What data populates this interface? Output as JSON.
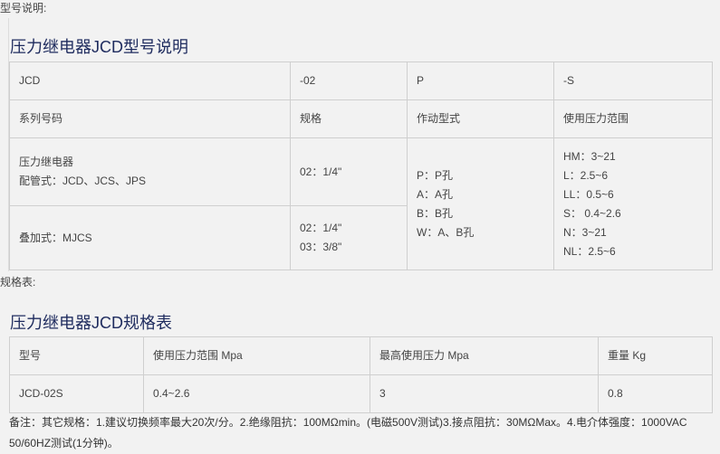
{
  "section1_label": "型号说明:",
  "table1": {
    "title": "压力继电器JCD型号说明",
    "code_row": [
      "JCD",
      "-02",
      "P",
      "-S"
    ],
    "header_row": [
      "系列号码",
      "规格",
      "作动型式",
      "使用压力范围"
    ],
    "series": [
      "压力继电器",
      "配管式：JCD、JCS、JPS"
    ],
    "series2": "叠加式：MJCS",
    "size1": "02：1/4\"",
    "size2": [
      "02：1/4\"",
      "03：3/8\""
    ],
    "action": [
      "P：P孔",
      "A：A孔",
      "B：B孔",
      "W：A、B孔"
    ],
    "pressure": [
      "HM：3~21",
      "L：2.5~6",
      "LL：0.5~6",
      "S： 0.4~2.6",
      "N：3~21",
      "NL：2.5~6"
    ]
  },
  "section2_label": "规格表:",
  "table2": {
    "title": "压力继电器JCD规格表",
    "headers": [
      "型号",
      "使用压力范围 Mpa",
      "最高使用压力 Mpa",
      "重量 Kg"
    ],
    "row": [
      "JCD-02S",
      "0.4~2.6",
      "3",
      "0.8"
    ]
  },
  "note": "备注：其它规格：1.建议切换频率最大20次/分。2.绝缘阻抗：100MΩmin。(电磁500V测试)3.接点阻抗：30MΩMax。4.电介体强度：1000VAC 50/60HZ测试(1分钟)。"
}
